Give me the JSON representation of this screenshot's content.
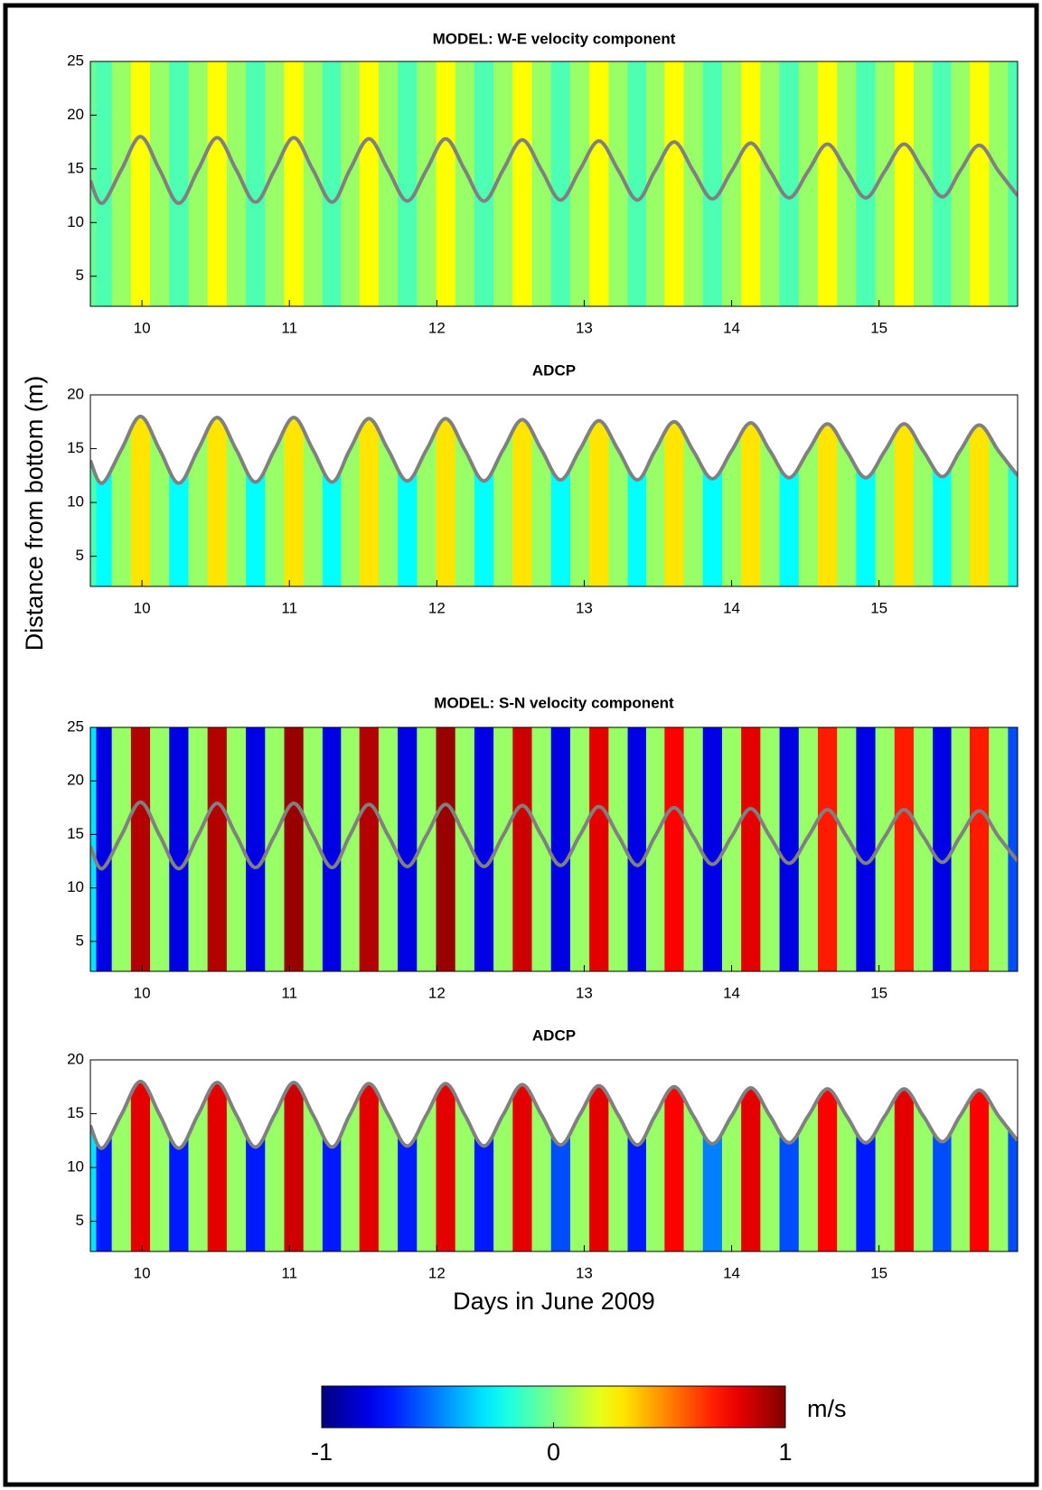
{
  "figure": {
    "ylabel": "Distance from bottom (m)",
    "xlabel": "Days in June 2009",
    "colorbar": {
      "clim": [
        -1,
        1
      ],
      "ticks": [
        -1,
        0,
        1
      ],
      "label": "m/s",
      "colormap": "jet"
    }
  },
  "chart_data": [
    {
      "type": "heatmap",
      "title": "MODEL: W-E velocity component",
      "xlim": [
        9.65,
        15.94
      ],
      "ylim": [
        2.2,
        25
      ],
      "xticks": [
        10,
        11,
        12,
        13,
        14,
        15
      ],
      "yticks": [
        5,
        10,
        15,
        20,
        25
      ],
      "clip_to_surface": false,
      "x": [
        9.65,
        9.73,
        9.86,
        9.99,
        10.12,
        10.25,
        10.38,
        10.51,
        10.64,
        10.77,
        10.9,
        11.03,
        11.16,
        11.29,
        11.41,
        11.54,
        11.67,
        11.8,
        11.93,
        12.06,
        12.19,
        12.32,
        12.45,
        12.58,
        12.71,
        12.84,
        12.97,
        13.1,
        13.23,
        13.36,
        13.48,
        13.61,
        13.74,
        13.87,
        14,
        14.13,
        14.26,
        14.39,
        14.52,
        14.65,
        14.78,
        14.91,
        15.04,
        15.17,
        15.3,
        15.43,
        15.55,
        15.68,
        15.81,
        15.94
      ],
      "surface": [
        13.9,
        11.8,
        14.9,
        18,
        14.9,
        11.8,
        14.9,
        17.9,
        14.9,
        11.9,
        14.9,
        17.9,
        14.9,
        11.9,
        14.9,
        17.8,
        14.9,
        12,
        14.9,
        17.8,
        14.9,
        12,
        14.9,
        17.7,
        14.9,
        12.1,
        14.9,
        17.6,
        14.9,
        12.1,
        14.8,
        17.5,
        14.8,
        12.2,
        14.8,
        17.4,
        14.8,
        12.3,
        14.8,
        17.3,
        14.8,
        12.3,
        14.8,
        17.3,
        14.8,
        12.4,
        14.8,
        17.2,
        14.8,
        12.5
      ],
      "velocity": [
        -0.05,
        -0.1,
        0.05,
        0.25,
        0.05,
        -0.1,
        0.05,
        0.25,
        0.05,
        -0.1,
        0.05,
        0.25,
        0.05,
        -0.1,
        0.05,
        0.25,
        0.05,
        -0.1,
        0.05,
        0.25,
        0.05,
        -0.1,
        0.05,
        0.25,
        0.05,
        -0.1,
        0.05,
        0.25,
        0.05,
        -0.1,
        0.05,
        0.25,
        0.05,
        -0.1,
        0.05,
        0.25,
        0.05,
        -0.1,
        0.05,
        0.25,
        0.05,
        -0.1,
        0.05,
        0.25,
        0.05,
        -0.1,
        0.05,
        0.25,
        0.05,
        -0.1
      ]
    },
    {
      "type": "heatmap",
      "title": "ADCP",
      "xlim": [
        9.65,
        15.94
      ],
      "ylim": [
        2.2,
        20
      ],
      "xticks": [
        10,
        11,
        12,
        13,
        14,
        15
      ],
      "yticks": [
        5,
        10,
        15,
        20
      ],
      "clip_to_surface": true,
      "x": [
        9.65,
        9.73,
        9.86,
        9.99,
        10.12,
        10.25,
        10.38,
        10.51,
        10.64,
        10.77,
        10.9,
        11.03,
        11.16,
        11.29,
        11.41,
        11.54,
        11.67,
        11.8,
        11.93,
        12.06,
        12.19,
        12.32,
        12.45,
        12.58,
        12.71,
        12.84,
        12.97,
        13.1,
        13.23,
        13.36,
        13.48,
        13.61,
        13.74,
        13.87,
        14,
        14.13,
        14.26,
        14.39,
        14.52,
        14.65,
        14.78,
        14.91,
        15.04,
        15.17,
        15.3,
        15.43,
        15.55,
        15.68,
        15.81,
        15.94
      ],
      "surface": [
        13.9,
        11.8,
        14.9,
        18,
        14.9,
        11.8,
        14.9,
        17.9,
        14.9,
        11.9,
        14.9,
        17.9,
        14.9,
        11.9,
        14.9,
        17.8,
        14.9,
        12,
        14.9,
        17.8,
        14.9,
        12,
        14.9,
        17.7,
        14.9,
        12.1,
        14.9,
        17.6,
        14.9,
        12.1,
        14.8,
        17.5,
        14.8,
        12.2,
        14.8,
        17.4,
        14.8,
        12.3,
        14.8,
        17.3,
        14.8,
        12.3,
        14.8,
        17.3,
        14.8,
        12.4,
        14.8,
        17.2,
        14.8,
        12.5
      ],
      "velocity": [
        -0.1,
        -0.25,
        0.05,
        0.3,
        0.05,
        -0.25,
        0.05,
        0.3,
        0.05,
        -0.25,
        0.05,
        0.3,
        0.05,
        -0.25,
        0.05,
        0.3,
        0.05,
        -0.25,
        0.05,
        0.3,
        0.05,
        -0.25,
        0.05,
        0.3,
        0.05,
        -0.25,
        0.05,
        0.3,
        0.05,
        -0.25,
        0.05,
        0.3,
        0.05,
        -0.25,
        0.05,
        0.3,
        0.05,
        -0.25,
        0.05,
        0.3,
        0.05,
        -0.25,
        0.05,
        0.3,
        0.05,
        -0.25,
        0.05,
        0.3,
        0.05,
        -0.2
      ]
    },
    {
      "type": "heatmap",
      "title": "MODEL: S-N velocity component",
      "xlim": [
        9.65,
        15.94
      ],
      "ylim": [
        2.2,
        25
      ],
      "xticks": [
        10,
        11,
        12,
        13,
        14,
        15
      ],
      "yticks": [
        5,
        10,
        15,
        20,
        25
      ],
      "clip_to_surface": false,
      "x": [
        9.65,
        9.73,
        9.86,
        9.99,
        10.12,
        10.25,
        10.38,
        10.51,
        10.64,
        10.77,
        10.9,
        11.03,
        11.16,
        11.29,
        11.41,
        11.54,
        11.67,
        11.8,
        11.93,
        12.06,
        12.19,
        12.32,
        12.45,
        12.58,
        12.71,
        12.84,
        12.97,
        13.1,
        13.23,
        13.36,
        13.48,
        13.61,
        13.74,
        13.87,
        14,
        14.13,
        14.26,
        14.39,
        14.52,
        14.65,
        14.78,
        14.91,
        15.04,
        15.17,
        15.3,
        15.43,
        15.55,
        15.68,
        15.81,
        15.94
      ],
      "surface": [
        13.9,
        11.8,
        14.9,
        18,
        14.9,
        11.8,
        14.9,
        17.9,
        14.9,
        11.9,
        14.9,
        17.9,
        14.9,
        11.9,
        14.9,
        17.8,
        14.9,
        12,
        14.9,
        17.8,
        14.9,
        12,
        14.9,
        17.7,
        14.9,
        12.1,
        14.9,
        17.6,
        14.9,
        12.1,
        14.8,
        17.5,
        14.8,
        12.2,
        14.8,
        17.4,
        14.8,
        12.3,
        14.8,
        17.3,
        14.8,
        12.3,
        14.8,
        17.3,
        14.8,
        12.4,
        14.8,
        17.2,
        14.8,
        12.5
      ],
      "velocity": [
        -0.3,
        -0.8,
        0.05,
        0.9,
        0.05,
        -0.8,
        0.05,
        0.9,
        0.05,
        -0.8,
        0.05,
        0.95,
        0.05,
        -0.8,
        0.05,
        0.9,
        0.05,
        -0.8,
        0.05,
        0.95,
        0.05,
        -0.8,
        0.05,
        0.85,
        0.05,
        -0.8,
        0.05,
        0.8,
        0.05,
        -0.8,
        0.05,
        0.75,
        0.05,
        -0.8,
        0.05,
        0.8,
        0.05,
        -0.8,
        0.05,
        0.7,
        0.05,
        -0.8,
        0.05,
        0.7,
        0.05,
        -0.8,
        0.05,
        0.7,
        0.05,
        -0.6
      ]
    },
    {
      "type": "heatmap",
      "title": "ADCP",
      "xlim": [
        9.65,
        15.94
      ],
      "ylim": [
        2.2,
        20
      ],
      "xticks": [
        10,
        11,
        12,
        13,
        14,
        15
      ],
      "yticks": [
        5,
        10,
        15,
        20
      ],
      "clip_to_surface": true,
      "x": [
        9.65,
        9.73,
        9.86,
        9.99,
        10.12,
        10.25,
        10.38,
        10.51,
        10.64,
        10.77,
        10.9,
        11.03,
        11.16,
        11.29,
        11.41,
        11.54,
        11.67,
        11.8,
        11.93,
        12.06,
        12.19,
        12.32,
        12.45,
        12.58,
        12.71,
        12.84,
        12.97,
        13.1,
        13.23,
        13.36,
        13.48,
        13.61,
        13.74,
        13.87,
        14,
        14.13,
        14.26,
        14.39,
        14.52,
        14.65,
        14.78,
        14.91,
        15.04,
        15.17,
        15.3,
        15.43,
        15.55,
        15.68,
        15.81,
        15.94
      ],
      "surface": [
        13.9,
        11.8,
        14.9,
        18,
        14.9,
        11.8,
        14.9,
        17.9,
        14.9,
        11.9,
        14.9,
        17.9,
        14.9,
        11.9,
        14.9,
        17.8,
        14.9,
        12,
        14.9,
        17.8,
        14.9,
        12,
        14.9,
        17.7,
        14.9,
        12.1,
        14.9,
        17.6,
        14.9,
        12.1,
        14.8,
        17.5,
        14.8,
        12.2,
        14.8,
        17.4,
        14.8,
        12.3,
        14.8,
        17.3,
        14.8,
        12.3,
        14.8,
        17.3,
        14.8,
        12.4,
        14.8,
        17.2,
        14.8,
        12.5
      ],
      "velocity": [
        -0.3,
        -0.7,
        0.05,
        0.8,
        0.05,
        -0.7,
        0.05,
        0.8,
        0.05,
        -0.7,
        0.05,
        0.85,
        0.05,
        -0.7,
        0.05,
        0.8,
        0.05,
        -0.7,
        0.05,
        0.8,
        0.05,
        -0.7,
        0.05,
        0.8,
        0.05,
        -0.6,
        0.05,
        0.8,
        0.05,
        -0.7,
        0.05,
        0.75,
        0.05,
        -0.5,
        0.05,
        0.8,
        0.05,
        -0.6,
        0.05,
        0.75,
        0.05,
        -0.7,
        0.05,
        0.8,
        0.05,
        -0.6,
        0.05,
        0.75,
        0.05,
        -0.6
      ]
    }
  ]
}
